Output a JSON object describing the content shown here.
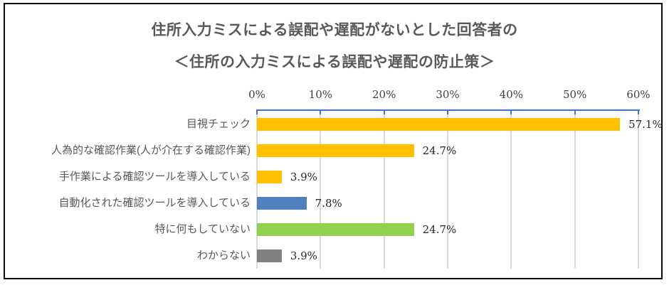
{
  "title": {
    "line1": "住所入力ミスによる誤配や遅配がないとした回答者の",
    "line2": "＜住所の入力ミスによる誤配や遅配の防止策＞"
  },
  "chart_data": {
    "type": "bar",
    "orientation": "horizontal",
    "title": "住所入力ミスによる誤配や遅配がないとした回答者の＜住所の入力ミスによる誤配や遅配の防止策＞",
    "categories": [
      "目視チェック",
      "人為的な確認作業(人が介在する確認作業)",
      "手作業による確認ツールを導入している",
      "自動化された確認ツールを導入している",
      "特に何もしていない",
      "わからない"
    ],
    "values": [
      57.1,
      24.7,
      3.9,
      7.8,
      24.7,
      3.9
    ],
    "value_labels": [
      "57.1%",
      "24.7%",
      "3.9%",
      "7.8%",
      "24.7%",
      "3.9%"
    ],
    "bar_colors": [
      "#FFC000",
      "#FFC000",
      "#FFC000",
      "#4E81BD",
      "#92D050",
      "#808080"
    ],
    "xlim": [
      0,
      60
    ],
    "x_tick_labels": [
      "0%",
      "10%",
      "20%",
      "30%",
      "40%",
      "50%",
      "60%"
    ],
    "x_tick_values": [
      0,
      10,
      20,
      30,
      40,
      50,
      60
    ],
    "xlabel": "",
    "ylabel": "",
    "grid": true,
    "legend": false,
    "axis_position": "top",
    "colors": {
      "axis": "#4472C4",
      "gridline": "#D9D9D9",
      "value_label": "#262626",
      "category_label": "#595959",
      "title_text": "#595959",
      "frame_border": "#0d0d0d"
    }
  }
}
